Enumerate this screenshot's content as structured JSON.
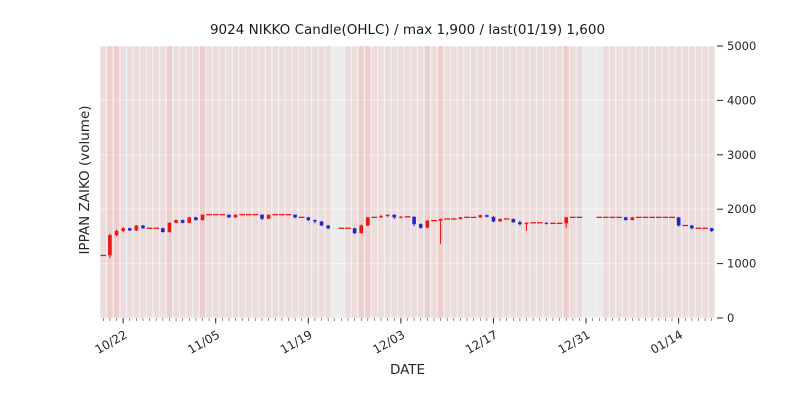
{
  "chart_data": {
    "type": "candlestick-ohlc",
    "title": "9024 NIKKO Candle(OHLC) / max 1,900 / last(01/19) 1,600",
    "xlabel": "DATE",
    "ylabel": "IPPAN ZAIKO (volume)",
    "ylim": [
      0,
      5000
    ],
    "yticks": [
      0,
      1000,
      2000,
      3000,
      4000,
      5000
    ],
    "xticks": [
      "10/22",
      "11/05",
      "11/19",
      "12/03",
      "12/17",
      "12/31",
      "01/14"
    ],
    "max_value": 1900,
    "last": {
      "date": "01/19",
      "value": 1600
    },
    "colors": {
      "up": "#f01414",
      "down": "#2424cc",
      "band_fill": "#ff0000",
      "plot_bg": "#ececec",
      "grid": "#ffffff",
      "tick_text": "#262626"
    },
    "day_format": [
      "date",
      "open",
      "high",
      "low",
      "close",
      "band_intensity"
    ],
    "days": [
      [
        "10/19",
        1150,
        1150,
        1150,
        1150,
        1
      ],
      [
        "10/20",
        1150,
        1550,
        1100,
        1525,
        2
      ],
      [
        "10/21",
        1525,
        1625,
        1500,
        1600,
        2
      ],
      [
        "10/22",
        1600,
        1675,
        1575,
        1650,
        1
      ],
      [
        "10/23",
        1650,
        1660,
        1600,
        1610,
        1
      ],
      [
        "10/24",
        1610,
        1710,
        1600,
        1700,
        1
      ],
      [
        "10/25",
        1700,
        1710,
        1640,
        1650,
        1
      ],
      [
        "10/26",
        1650,
        1650,
        1650,
        1650,
        1
      ],
      [
        "10/27",
        1650,
        1650,
        1650,
        1650,
        1
      ],
      [
        "10/28",
        1650,
        1660,
        1570,
        1580,
        1
      ],
      [
        "10/29",
        1580,
        1760,
        1570,
        1750,
        2
      ],
      [
        "10/30",
        1750,
        1810,
        1740,
        1800,
        1
      ],
      [
        "10/31",
        1800,
        1810,
        1740,
        1750,
        1
      ],
      [
        "11/01",
        1750,
        1860,
        1740,
        1850,
        1
      ],
      [
        "11/02",
        1850,
        1860,
        1790,
        1800,
        1
      ],
      [
        "11/03",
        1800,
        1900,
        1790,
        1900,
        2
      ],
      [
        "11/04",
        1900,
        1900,
        1900,
        1900,
        1
      ],
      [
        "11/05",
        1900,
        1900,
        1900,
        1900,
        1
      ],
      [
        "11/06",
        1900,
        1900,
        1900,
        1900,
        1
      ],
      [
        "11/07",
        1900,
        1900,
        1840,
        1850,
        1
      ],
      [
        "11/08",
        1850,
        1900,
        1840,
        1900,
        1
      ],
      [
        "11/09",
        1900,
        1900,
        1900,
        1900,
        1
      ],
      [
        "11/10",
        1900,
        1900,
        1900,
        1900,
        1
      ],
      [
        "11/11",
        1900,
        1900,
        1900,
        1900,
        1
      ],
      [
        "11/12",
        1900,
        1900,
        1800,
        1825,
        1
      ],
      [
        "11/13",
        1825,
        1900,
        1820,
        1900,
        1
      ],
      [
        "11/14",
        1900,
        1900,
        1900,
        1900,
        1
      ],
      [
        "11/15",
        1900,
        1900,
        1900,
        1900,
        1
      ],
      [
        "11/16",
        1900,
        1900,
        1900,
        1900,
        1
      ],
      [
        "11/17",
        1900,
        1900,
        1830,
        1850,
        1
      ],
      [
        "11/18",
        1850,
        1850,
        1850,
        1850,
        1
      ],
      [
        "11/19",
        1850,
        1860,
        1780,
        1800,
        1
      ],
      [
        "11/20",
        1800,
        1810,
        1740,
        1775,
        1
      ],
      [
        "11/21",
        1775,
        1780,
        1690,
        1700,
        1
      ],
      [
        "11/22",
        1700,
        1710,
        1630,
        1650,
        1
      ],
      [
        "11/23",
        null,
        null,
        null,
        null,
        0
      ],
      [
        "11/24",
        1650,
        1650,
        1650,
        1650,
        0
      ],
      [
        "11/25",
        1650,
        1650,
        1650,
        1650,
        1
      ],
      [
        "11/26",
        1650,
        1660,
        1540,
        1560,
        1
      ],
      [
        "11/27",
        1560,
        1720,
        1550,
        1700,
        2
      ],
      [
        "11/28",
        1700,
        1860,
        1690,
        1850,
        2
      ],
      [
        "11/29",
        1850,
        1850,
        1850,
        1850,
        1
      ],
      [
        "11/30",
        1850,
        1900,
        1840,
        1875,
        1
      ],
      [
        "12/01",
        1875,
        1900,
        1850,
        1900,
        1
      ],
      [
        "12/02",
        1900,
        1900,
        1820,
        1850,
        1
      ],
      [
        "12/03",
        1850,
        1875,
        1830,
        1860,
        1
      ],
      [
        "12/04",
        1860,
        1860,
        1860,
        1860,
        1
      ],
      [
        "12/05",
        1860,
        1870,
        1690,
        1725,
        1
      ],
      [
        "12/06",
        1725,
        1740,
        1640,
        1660,
        1
      ],
      [
        "12/07",
        1660,
        1800,
        1650,
        1790,
        2
      ],
      [
        "12/08",
        1790,
        1790,
        1790,
        1790,
        1
      ],
      [
        "12/09",
        1790,
        1830,
        1360,
        1820,
        2
      ],
      [
        "12/10",
        1820,
        1820,
        1820,
        1820,
        1
      ],
      [
        "12/11",
        1820,
        1820,
        1820,
        1820,
        1
      ],
      [
        "12/12",
        1820,
        1860,
        1810,
        1850,
        1
      ],
      [
        "12/13",
        1850,
        1850,
        1850,
        1850,
        1
      ],
      [
        "12/14",
        1850,
        1850,
        1850,
        1850,
        1
      ],
      [
        "12/15",
        1850,
        1900,
        1840,
        1890,
        1
      ],
      [
        "12/16",
        1890,
        1900,
        1850,
        1860,
        1
      ],
      [
        "12/17",
        1860,
        1870,
        1760,
        1775,
        1
      ],
      [
        "12/18",
        1775,
        1830,
        1770,
        1820,
        1
      ],
      [
        "12/19",
        1820,
        1820,
        1820,
        1820,
        1
      ],
      [
        "12/20",
        1820,
        1830,
        1750,
        1760,
        1
      ],
      [
        "12/21",
        1760,
        1790,
        1700,
        1725,
        1
      ],
      [
        "12/22",
        1725,
        1760,
        1600,
        1750,
        1
      ],
      [
        "12/23",
        1750,
        1750,
        1750,
        1750,
        1
      ],
      [
        "12/24",
        1750,
        1750,
        1750,
        1750,
        1
      ],
      [
        "12/25",
        1750,
        1760,
        1720,
        1740,
        1
      ],
      [
        "12/26",
        1740,
        1740,
        1740,
        1740,
        1
      ],
      [
        "12/27",
        1740,
        1740,
        1740,
        1740,
        1
      ],
      [
        "12/28",
        1740,
        1860,
        1650,
        1850,
        2
      ],
      [
        "12/29",
        1850,
        1850,
        1850,
        1850,
        1
      ],
      [
        "12/30",
        1850,
        1850,
        1850,
        1850,
        1
      ],
      [
        "12/31",
        null,
        null,
        null,
        null,
        0
      ],
      [
        "01/01",
        null,
        null,
        null,
        null,
        0
      ],
      [
        "01/02",
        1850,
        1850,
        1850,
        1850,
        0
      ],
      [
        "01/03",
        1850,
        1850,
        1850,
        1850,
        1
      ],
      [
        "01/04",
        1850,
        1850,
        1850,
        1850,
        1
      ],
      [
        "01/05",
        1850,
        1850,
        1850,
        1850,
        1
      ],
      [
        "01/06",
        1850,
        1860,
        1790,
        1800,
        1
      ],
      [
        "01/07",
        1800,
        1860,
        1795,
        1850,
        1
      ],
      [
        "01/08",
        1850,
        1850,
        1850,
        1850,
        1
      ],
      [
        "01/09",
        1850,
        1850,
        1850,
        1850,
        1
      ],
      [
        "01/10",
        1850,
        1850,
        1850,
        1850,
        1
      ],
      [
        "01/11",
        1850,
        1850,
        1850,
        1850,
        1
      ],
      [
        "01/12",
        1850,
        1850,
        1850,
        1850,
        1
      ],
      [
        "01/13",
        1850,
        1850,
        1850,
        1850,
        1
      ],
      [
        "01/14",
        1850,
        1860,
        1680,
        1700,
        1
      ],
      [
        "01/15",
        1700,
        1700,
        1700,
        1700,
        1
      ],
      [
        "01/16",
        1700,
        1710,
        1630,
        1650,
        1
      ],
      [
        "01/17",
        1650,
        1650,
        1650,
        1650,
        1
      ],
      [
        "01/18",
        1650,
        1650,
        1650,
        1650,
        1
      ],
      [
        "01/19",
        1650,
        1660,
        1580,
        1600,
        1
      ]
    ]
  }
}
